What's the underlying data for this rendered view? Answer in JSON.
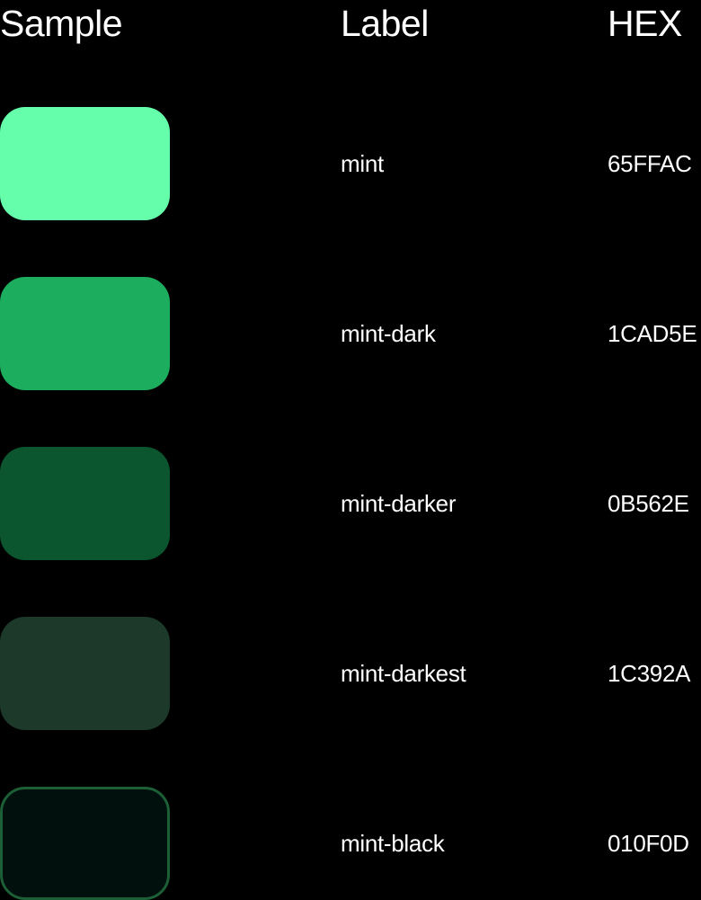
{
  "header": {
    "sample": "Sample",
    "label": "Label",
    "hex": "HEX"
  },
  "rows": [
    {
      "label": "mint",
      "hex": "65FFAC",
      "color": "#65FFAC",
      "outline": null
    },
    {
      "label": "mint-dark",
      "hex": "1CAD5E",
      "color": "#1CAD5E",
      "outline": null
    },
    {
      "label": "mint-darker",
      "hex": "0B562E",
      "color": "#0B562E",
      "outline": null
    },
    {
      "label": "mint-darkest",
      "hex": "1C392A",
      "color": "#1C392A",
      "outline": null
    },
    {
      "label": "mint-black",
      "hex": "010F0D",
      "color": "#010F0D",
      "outline": "#1c5e35"
    }
  ]
}
